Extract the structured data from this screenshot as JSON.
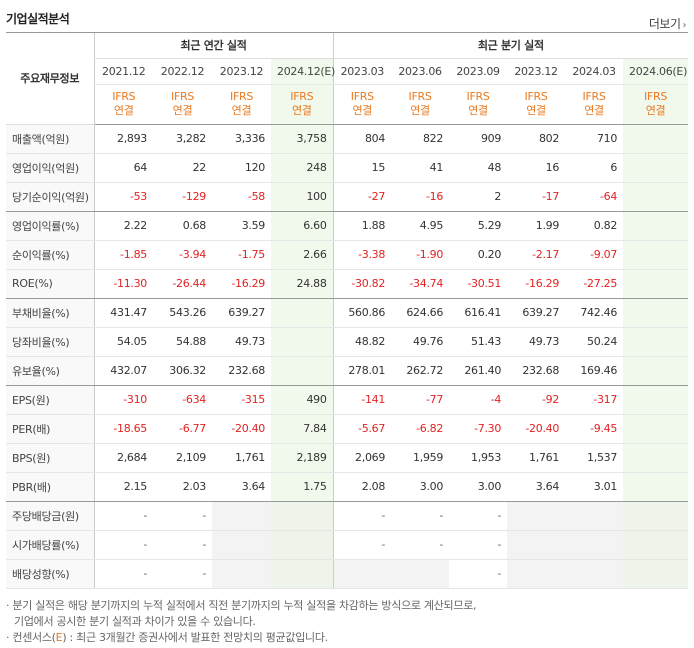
{
  "header": {
    "title": "기업실적분석",
    "more_label": "더보기",
    "more_icon": "chevron-right-icon"
  },
  "table": {
    "row_header_label": "주요재무정보",
    "group_annual": "최근 연간 실적",
    "group_quarter": "최근 분기 실적",
    "periods": [
      "2021.12",
      "2022.12",
      "2023.12",
      "2024.12(E)",
      "2023.03",
      "2023.06",
      "2023.09",
      "2023.12",
      "2024.03",
      "2024.06(E)"
    ],
    "ifrs_top": "IFRS",
    "ifrs_bottom": "연결",
    "rows": [
      {
        "label": "매출액(억원)",
        "values": [
          "2,893",
          "3,282",
          "3,336",
          "3,758",
          "804",
          "822",
          "909",
          "802",
          "710",
          ""
        ]
      },
      {
        "label": "영업이익(억원)",
        "values": [
          "64",
          "22",
          "120",
          "248",
          "15",
          "41",
          "48",
          "16",
          "6",
          ""
        ]
      },
      {
        "label": "당기순이익(억원)",
        "values": [
          "-53",
          "-129",
          "-58",
          "100",
          "-27",
          "-16",
          "2",
          "-17",
          "-64",
          ""
        ]
      },
      {
        "label": "영업이익률(%)",
        "values": [
          "2.22",
          "0.68",
          "3.59",
          "6.60",
          "1.88",
          "4.95",
          "5.29",
          "1.99",
          "0.82",
          ""
        ]
      },
      {
        "label": "순이익률(%)",
        "values": [
          "-1.85",
          "-3.94",
          "-1.75",
          "2.66",
          "-3.38",
          "-1.90",
          "0.20",
          "-2.17",
          "-9.07",
          ""
        ]
      },
      {
        "label": "ROE(%)",
        "values": [
          "-11.30",
          "-26.44",
          "-16.29",
          "24.88",
          "-30.82",
          "-34.74",
          "-30.51",
          "-16.29",
          "-27.25",
          ""
        ]
      },
      {
        "label": "부채비율(%)",
        "values": [
          "431.47",
          "543.26",
          "639.27",
          "",
          "560.86",
          "624.66",
          "616.41",
          "639.27",
          "742.46",
          ""
        ]
      },
      {
        "label": "당좌비율(%)",
        "values": [
          "54.05",
          "54.88",
          "49.73",
          "",
          "48.82",
          "49.76",
          "51.43",
          "49.73",
          "50.24",
          ""
        ]
      },
      {
        "label": "유보율(%)",
        "values": [
          "432.07",
          "306.32",
          "232.68",
          "",
          "278.01",
          "262.72",
          "261.40",
          "232.68",
          "169.46",
          ""
        ]
      },
      {
        "label": "EPS(원)",
        "values": [
          "-310",
          "-634",
          "-315",
          "490",
          "-141",
          "-77",
          "-4",
          "-92",
          "-317",
          ""
        ]
      },
      {
        "label": "PER(배)",
        "values": [
          "-18.65",
          "-6.77",
          "-20.40",
          "7.84",
          "-5.67",
          "-6.82",
          "-7.30",
          "-20.40",
          "-9.45",
          ""
        ]
      },
      {
        "label": "BPS(원)",
        "values": [
          "2,684",
          "2,109",
          "1,761",
          "2,189",
          "2,069",
          "1,959",
          "1,953",
          "1,761",
          "1,537",
          ""
        ]
      },
      {
        "label": "PBR(배)",
        "values": [
          "2.15",
          "2.03",
          "3.64",
          "1.75",
          "2.08",
          "3.00",
          "3.00",
          "3.64",
          "3.01",
          ""
        ]
      },
      {
        "label": "주당배당금(원)",
        "values": [
          "-",
          "-",
          "",
          "",
          "-",
          "-",
          "-",
          "",
          "",
          ""
        ]
      },
      {
        "label": "시가배당률(%)",
        "values": [
          "-",
          "-",
          "",
          "",
          "-",
          "-",
          "-",
          "",
          "",
          ""
        ]
      },
      {
        "label": "배당성향(%)",
        "values": [
          "-",
          "-",
          "",
          "",
          "",
          "",
          "-",
          "",
          "",
          ""
        ]
      }
    ]
  },
  "notes": {
    "line1": "· 분기 실적은 해당 분기까지의 누적 실적에서 직전 분기까지의 누적 실적을 차감하는 방식으로 계산되므로,",
    "line2": "기업에서 공시한 분기 실적과 차이가 있을 수 있습니다.",
    "line3_prefix": "· 컨센서스(",
    "line3_e": "E",
    "line3_suffix": ") : 최근 3개월간 증권사에서 발표한 전망치의 평균값입니다."
  },
  "colors": {
    "negative": "#e32222",
    "ifrs": "#e87a20",
    "estimate_bg": "#f1f8ec"
  }
}
